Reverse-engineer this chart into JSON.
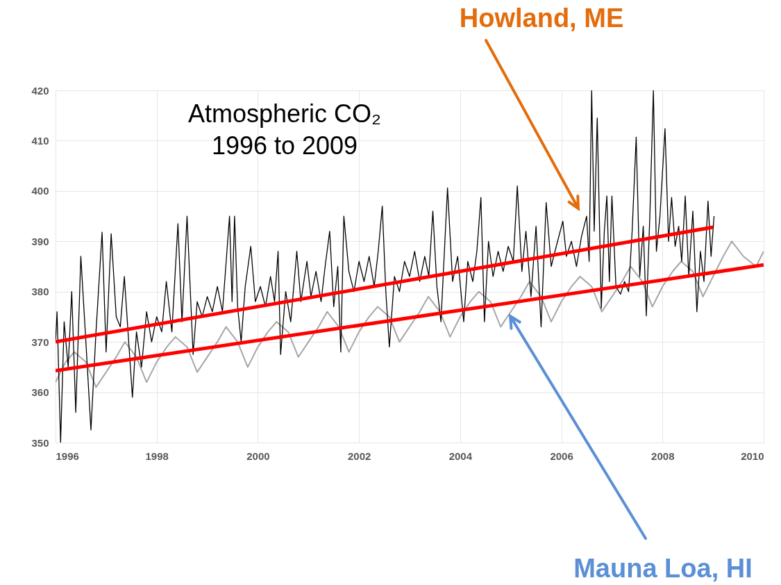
{
  "chart_data": {
    "type": "line",
    "title": "Atmospheric CO₂\n1996 to 2009",
    "xlim": [
      1996,
      2010
    ],
    "xticks": [
      1996,
      1998,
      2000,
      2002,
      2004,
      2006,
      2008,
      2010
    ],
    "ylim": [
      350,
      420
    ],
    "yticks": [
      350,
      360,
      370,
      380,
      390,
      400,
      410,
      420
    ],
    "grid": true,
    "marker": "none",
    "series": [
      {
        "name": "Mauna Loa, HI",
        "color": "#a6a6a6",
        "x": [
          1996.0,
          1996.2,
          1996.37,
          1996.6,
          1996.8,
          1997.0,
          1997.2,
          1997.37,
          1997.6,
          1997.8,
          1998.0,
          1998.2,
          1998.37,
          1998.6,
          1998.8,
          1999.0,
          1999.2,
          1999.37,
          1999.6,
          1999.8,
          2000.0,
          2000.2,
          2000.37,
          2000.6,
          2000.8,
          2001.0,
          2001.2,
          2001.37,
          2001.6,
          2001.8,
          2002.0,
          2002.2,
          2002.37,
          2002.6,
          2002.8,
          2003.0,
          2003.2,
          2003.37,
          2003.6,
          2003.8,
          2004.0,
          2004.2,
          2004.37,
          2004.6,
          2004.8,
          2005.0,
          2005.2,
          2005.37,
          2005.6,
          2005.8,
          2006.0,
          2006.2,
          2006.37,
          2006.6,
          2006.8,
          2007.0,
          2007.2,
          2007.37,
          2007.6,
          2007.8,
          2008.0,
          2008.2,
          2008.37,
          2008.6,
          2008.8,
          2009.0,
          2009.2,
          2009.37,
          2009.6,
          2009.85,
          2010.0
        ],
        "values": [
          362,
          366,
          368,
          366,
          361,
          364,
          367,
          370,
          367,
          362,
          366,
          369,
          371,
          369,
          364,
          367,
          370,
          373,
          370,
          365,
          369,
          372,
          374,
          372,
          367,
          370,
          373,
          376,
          373,
          368,
          372,
          375,
          377,
          375,
          370,
          373,
          376,
          379,
          376,
          371,
          375,
          378,
          380,
          378,
          373,
          376,
          379,
          382,
          379,
          374,
          378,
          381,
          383,
          381,
          376,
          379,
          382,
          385,
          382,
          377,
          381,
          384,
          386,
          384,
          379,
          383,
          387,
          390,
          387,
          385,
          388
        ]
      },
      {
        "name": "Howland, ME",
        "color": "#000000",
        "x": [
          1996.0,
          1996.03,
          1996.1,
          1996.17,
          1996.25,
          1996.32,
          1996.4,
          1996.5,
          1996.6,
          1996.7,
          1996.8,
          1996.92,
          1997.0,
          1997.1,
          1997.2,
          1997.28,
          1997.36,
          1997.44,
          1997.52,
          1997.6,
          1997.7,
          1997.8,
          1997.9,
          1998.0,
          1998.1,
          1998.19,
          1998.3,
          1998.42,
          1998.5,
          1998.6,
          1998.72,
          1998.8,
          1998.9,
          1999.0,
          1999.1,
          1999.2,
          1999.3,
          1999.44,
          1999.49,
          1999.54,
          1999.6,
          1999.67,
          1999.75,
          1999.86,
          1999.95,
          2000.05,
          2000.15,
          2000.25,
          2000.33,
          2000.4,
          2000.45,
          2000.55,
          2000.65,
          2000.77,
          2000.85,
          2000.97,
          2001.05,
          2001.15,
          2001.25,
          2001.33,
          2001.42,
          2001.5,
          2001.58,
          2001.64,
          2001.7,
          2001.8,
          2001.9,
          2002.0,
          2002.1,
          2002.2,
          2002.3,
          2002.38,
          2002.46,
          2002.53,
          2002.6,
          2002.7,
          2002.8,
          2002.9,
          2003.0,
          2003.1,
          2003.2,
          2003.3,
          2003.38,
          2003.46,
          2003.54,
          2003.62,
          2003.75,
          2003.85,
          2003.95,
          2004.07,
          2004.15,
          2004.25,
          2004.33,
          2004.41,
          2004.48,
          2004.56,
          2004.65,
          2004.75,
          2004.85,
          2004.95,
          2005.05,
          2005.13,
          2005.22,
          2005.3,
          2005.4,
          2005.5,
          2005.6,
          2005.7,
          2005.8,
          2005.9,
          2006.03,
          2006.1,
          2006.2,
          2006.3,
          2006.4,
          2006.5,
          2006.55,
          2006.6,
          2006.65,
          2006.71,
          2006.79,
          2006.85,
          2006.9,
          2006.95,
          2007.0,
          2007.08,
          2007.17,
          2007.25,
          2007.33,
          2007.4,
          2007.48,
          2007.55,
          2007.62,
          2007.68,
          2007.75,
          2007.82,
          2007.88,
          2007.95,
          2008.05,
          2008.12,
          2008.18,
          2008.25,
          2008.32,
          2008.38,
          2008.45,
          2008.52,
          2008.6,
          2008.68,
          2008.75,
          2008.82,
          2008.9,
          2008.96,
          2009.02
        ],
        "values": [
          370,
          376,
          350,
          374,
          365,
          380,
          356,
          387,
          370,
          352.5,
          372,
          391.8,
          368,
          391.5,
          375,
          373,
          383,
          371,
          359,
          372,
          365,
          376,
          370,
          375,
          372,
          382,
          372,
          393.5,
          374,
          395,
          367.5,
          378,
          375,
          379,
          376,
          381,
          376,
          395,
          378,
          395,
          377,
          370,
          381,
          389,
          378,
          381,
          377,
          383,
          378,
          388,
          367.5,
          380,
          374,
          388,
          378,
          386,
          379,
          384,
          378,
          385,
          392,
          377,
          385,
          368,
          395,
          384,
          380,
          386,
          382,
          387,
          381,
          388,
          397,
          380,
          369,
          383,
          380,
          386,
          383,
          388,
          382,
          387,
          383,
          396,
          381,
          374,
          400.6,
          382,
          387,
          374,
          386,
          382,
          388,
          398.7,
          374,
          390,
          383,
          388,
          384,
          389,
          386,
          401,
          384,
          392,
          379,
          393,
          373,
          397.7,
          385,
          389,
          394,
          387,
          390,
          385,
          391,
          395,
          386,
          420,
          392,
          414.5,
          376.7,
          392,
          399,
          382,
          399,
          381,
          379.5,
          382,
          380,
          392,
          410.7,
          383,
          393,
          375.2,
          395,
          420,
          388,
          395,
          412.4,
          390,
          398.7,
          389,
          393,
          386,
          399,
          383,
          396,
          376,
          388,
          382,
          398,
          387,
          395
        ]
      },
      {
        "color": "#ff0000",
        "x": [
          1996,
          2009
        ],
        "values": [
          370,
          392.8
        ]
      },
      {
        "color": "#ff0000",
        "x": [
          1996,
          2010
        ],
        "values": [
          364.3,
          385.3
        ]
      }
    ]
  }
}
